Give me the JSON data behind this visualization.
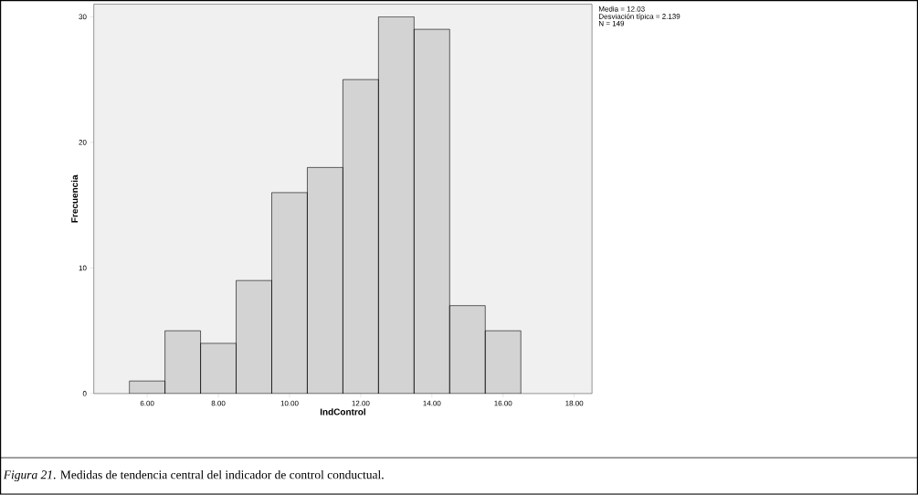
{
  "chart_data": {
    "type": "histogram",
    "xlabel": "IndControl",
    "ylabel": "Frecuencia",
    "bins": [
      5.5,
      6.5,
      7.5,
      8.5,
      9.5,
      10.5,
      11.5,
      12.5,
      13.5,
      14.5,
      15.5,
      16.5
    ],
    "values": [
      1,
      5,
      4,
      9,
      16,
      18,
      25,
      30,
      29,
      7,
      5
    ],
    "color": "#d3d3d3",
    "xlim": [
      4.5,
      18.5
    ],
    "ylim": [
      0,
      31
    ],
    "xticks": [
      {
        "value": 6,
        "label": "6.00"
      },
      {
        "value": 8,
        "label": "8.00"
      },
      {
        "value": 10,
        "label": "10.00"
      },
      {
        "value": 12,
        "label": "12.00"
      },
      {
        "value": 14,
        "label": "14.00"
      },
      {
        "value": 16,
        "label": "16.00"
      },
      {
        "value": 18,
        "label": "18.00"
      }
    ],
    "yticks": [
      0,
      10,
      20,
      30
    ],
    "annotations": [
      "Media = 12.03",
      "Desviación típica = 2.139",
      "N = 149",
      "*Figura 21*. Medidas de tendencia central del indicador de control conductual."
    ]
  }
}
